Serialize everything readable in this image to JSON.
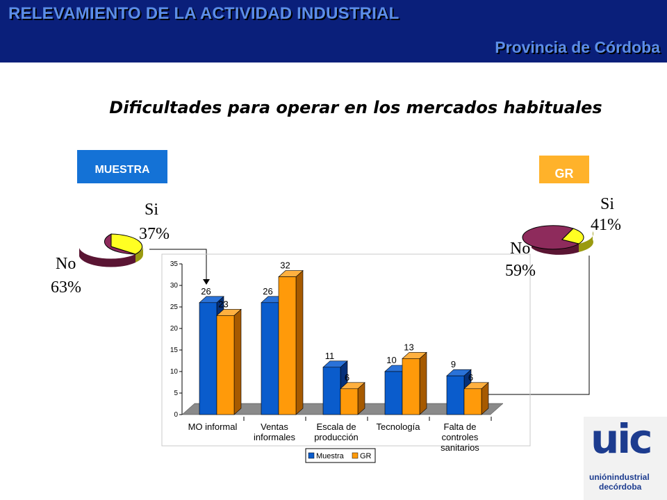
{
  "header": {
    "title": "RELEVAMIENTO DE LA ACTIVIDAD INDUSTRIAL",
    "subtitle": "Provincia de Córdoba"
  },
  "tags": {
    "muestra": "MUESTRA",
    "gr": "GR"
  },
  "pies": {
    "muestra": {
      "si_label": "Si",
      "si_value": "37%",
      "no_label": "No",
      "no_value": "63%"
    },
    "gr": {
      "si_label": "Si",
      "si_value": "41%",
      "no_label": "No",
      "no_value": "59%"
    }
  },
  "logo": {
    "mark": "uic",
    "line1": "uniónindustrial",
    "line2": "decórdoba"
  },
  "colors": {
    "muestra": "#0a5ccc",
    "gr": "#ff9a0a",
    "si": "#ffff22",
    "no": "#8e2b5c",
    "header": "#0a1f7a"
  },
  "chart_data": {
    "type": "bar",
    "title": "Dificultades para operar en los mercados habituales",
    "categories": [
      [
        "MO informal"
      ],
      [
        "Ventas",
        "informales"
      ],
      [
        "Escala de",
        "producción"
      ],
      [
        "Tecnología"
      ],
      [
        "Falta de",
        "controles",
        "sanitarios"
      ]
    ],
    "series": [
      {
        "name": "Muestra",
        "values": [
          26,
          26,
          11,
          10,
          9
        ]
      },
      {
        "name": "GR",
        "values": [
          23,
          32,
          6,
          13,
          6
        ]
      }
    ],
    "ylim": [
      0,
      35
    ],
    "yticks": [
      0,
      5,
      10,
      15,
      20,
      25,
      30,
      35
    ],
    "legend": "bottom-center",
    "grid": false
  }
}
